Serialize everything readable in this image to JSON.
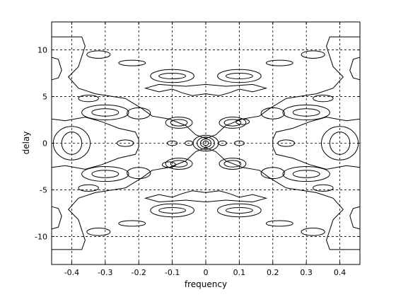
{
  "chart_data": {
    "type": "contour",
    "title": "",
    "xlabel": "frequency",
    "ylabel": "delay",
    "xlim": [
      -0.46,
      0.46
    ],
    "ylim": [
      -13,
      13
    ],
    "xticks": [
      -0.4,
      -0.3,
      -0.2,
      -0.1,
      0,
      0.1,
      0.2,
      0.3,
      0.4
    ],
    "xtick_labels": [
      "-0.4",
      "-0.3",
      "-0.2",
      "-0.1",
      "0",
      "0.1",
      "0.2",
      "0.3",
      "0.4"
    ],
    "yticks": [
      -10,
      -5,
      0,
      5,
      10
    ],
    "ytick_labels": [
      "-10",
      "-5",
      "0",
      "5",
      "10"
    ],
    "grid": true,
    "contours": [
      {
        "cx": 0,
        "cy": 0,
        "rx": 0.008,
        "ry": 0.25
      },
      {
        "cx": 0,
        "cy": 0,
        "rx": 0.016,
        "ry": 0.45
      },
      {
        "cx": 0,
        "cy": 0,
        "rx": 0.026,
        "ry": 0.65
      },
      {
        "cx": 0,
        "cy": 0,
        "rx": 0.038,
        "ry": 0.85
      },
      {
        "cx": -0.08,
        "cy": 2.2,
        "rx": 0.025,
        "ry": 0.35
      },
      {
        "cx": -0.08,
        "cy": 2.2,
        "rx": 0.04,
        "ry": 0.6
      },
      {
        "cx": 0.08,
        "cy": 2.2,
        "rx": 0.025,
        "ry": 0.35
      },
      {
        "cx": 0.08,
        "cy": 2.2,
        "rx": 0.04,
        "ry": 0.6
      },
      {
        "cx": -0.08,
        "cy": -2.2,
        "rx": 0.025,
        "ry": 0.35
      },
      {
        "cx": -0.08,
        "cy": -2.2,
        "rx": 0.04,
        "ry": 0.6
      },
      {
        "cx": 0.08,
        "cy": -2.2,
        "rx": 0.025,
        "ry": 0.35
      },
      {
        "cx": 0.08,
        "cy": -2.2,
        "rx": 0.04,
        "ry": 0.6
      },
      {
        "cx": 0.11,
        "cy": 2.3,
        "rx": 0.02,
        "ry": 0.3
      },
      {
        "cx": -0.11,
        "cy": -2.3,
        "rx": 0.02,
        "ry": 0.3
      },
      {
        "cx": -0.2,
        "cy": 3.2,
        "rx": 0.035,
        "ry": 0.6
      },
      {
        "cx": 0.2,
        "cy": 3.2,
        "rx": 0.035,
        "ry": 0.6
      },
      {
        "cx": -0.2,
        "cy": -3.2,
        "rx": 0.035,
        "ry": 0.6
      },
      {
        "cx": 0.2,
        "cy": -3.2,
        "rx": 0.035,
        "ry": 0.6
      },
      {
        "cx": -0.3,
        "cy": 3.3,
        "rx": 0.04,
        "ry": 0.4
      },
      {
        "cx": -0.3,
        "cy": 3.3,
        "rx": 0.07,
        "ry": 0.8
      },
      {
        "cx": 0.3,
        "cy": 3.3,
        "rx": 0.04,
        "ry": 0.4
      },
      {
        "cx": 0.3,
        "cy": 3.3,
        "rx": 0.07,
        "ry": 0.8
      },
      {
        "cx": -0.3,
        "cy": -3.3,
        "rx": 0.04,
        "ry": 0.4
      },
      {
        "cx": -0.3,
        "cy": -3.3,
        "rx": 0.07,
        "ry": 0.8
      },
      {
        "cx": 0.3,
        "cy": -3.3,
        "rx": 0.04,
        "ry": 0.4
      },
      {
        "cx": 0.3,
        "cy": -3.3,
        "rx": 0.07,
        "ry": 0.8
      },
      {
        "cx": -0.1,
        "cy": 7.2,
        "rx": 0.04,
        "ry": 0.3
      },
      {
        "cx": 0.1,
        "cy": 7.2,
        "rx": 0.04,
        "ry": 0.3
      },
      {
        "cx": -0.1,
        "cy": -7.2,
        "rx": 0.04,
        "ry": 0.3
      },
      {
        "cx": 0.1,
        "cy": -7.2,
        "rx": 0.04,
        "ry": 0.3
      },
      {
        "cx": -0.1,
        "cy": 7.2,
        "rx": 0.065,
        "ry": 0.7
      },
      {
        "cx": 0.1,
        "cy": 7.2,
        "rx": 0.065,
        "ry": 0.7
      },
      {
        "cx": -0.1,
        "cy": -7.2,
        "rx": 0.065,
        "ry": 0.7
      },
      {
        "cx": 0.1,
        "cy": -7.2,
        "rx": 0.065,
        "ry": 0.7
      },
      {
        "cx": -0.35,
        "cy": 4.8,
        "rx": 0.03,
        "ry": 0.35
      },
      {
        "cx": 0.35,
        "cy": 4.8,
        "rx": 0.03,
        "ry": 0.35
      },
      {
        "cx": -0.35,
        "cy": -4.8,
        "rx": 0.03,
        "ry": 0.35
      },
      {
        "cx": 0.35,
        "cy": -4.8,
        "rx": 0.03,
        "ry": 0.35
      },
      {
        "cx": -0.4,
        "cy": 0,
        "rx": 0.03,
        "ry": 1.2
      },
      {
        "cx": -0.4,
        "cy": 0,
        "rx": 0.055,
        "ry": 1.8
      },
      {
        "cx": 0.4,
        "cy": 0,
        "rx": 0.03,
        "ry": 1.2
      },
      {
        "cx": 0.4,
        "cy": 0,
        "rx": 0.055,
        "ry": 1.8
      },
      {
        "cx": -0.24,
        "cy": 0,
        "rx": 0.025,
        "ry": 0.35
      },
      {
        "cx": 0.24,
        "cy": 0,
        "rx": 0.025,
        "ry": 0.35
      },
      {
        "cx": -0.05,
        "cy": 0,
        "rx": 0.012,
        "ry": 0.25
      },
      {
        "cx": 0.05,
        "cy": 0,
        "rx": 0.012,
        "ry": 0.25
      },
      {
        "cx": 0.1,
        "cy": 0,
        "rx": 0.015,
        "ry": 0.25
      },
      {
        "cx": -0.1,
        "cy": 0,
        "rx": 0.015,
        "ry": 0.25
      },
      {
        "cx": -0.22,
        "cy": 8.6,
        "rx": 0.04,
        "ry": 0.3
      },
      {
        "cx": 0.22,
        "cy": 8.6,
        "rx": 0.04,
        "ry": 0.3
      },
      {
        "cx": -0.22,
        "cy": -8.6,
        "rx": 0.04,
        "ry": 0.3
      },
      {
        "cx": 0.22,
        "cy": -8.6,
        "rx": 0.04,
        "ry": 0.3
      },
      {
        "cx": -0.32,
        "cy": 9.5,
        "rx": 0.035,
        "ry": 0.4
      },
      {
        "cx": 0.32,
        "cy": 9.5,
        "rx": 0.035,
        "ry": 0.4
      },
      {
        "cx": -0.32,
        "cy": -9.5,
        "rx": 0.035,
        "ry": 0.4
      },
      {
        "cx": 0.32,
        "cy": -9.5,
        "rx": 0.035,
        "ry": 0.4
      }
    ],
    "outer_contours": [
      [
        [
          -0.46,
          11.4
        ],
        [
          -0.37,
          11.4
        ],
        [
          -0.36,
          10.4
        ],
        [
          -0.38,
          8.2
        ],
        [
          -0.41,
          7.1
        ],
        [
          -0.38,
          5.9
        ],
        [
          -0.33,
          5.3
        ],
        [
          -0.24,
          4.8
        ],
        [
          -0.19,
          3.7
        ],
        [
          -0.16,
          2.9
        ],
        [
          -0.11,
          2.6
        ],
        [
          -0.06,
          1.9
        ],
        [
          -0.03,
          0.9
        ],
        [
          0,
          0.5
        ],
        [
          0.03,
          0.9
        ],
        [
          0.06,
          1.9
        ],
        [
          0.11,
          2.6
        ],
        [
          0.16,
          2.9
        ],
        [
          0.19,
          3.7
        ],
        [
          0.24,
          4.8
        ],
        [
          0.33,
          5.3
        ],
        [
          0.38,
          5.9
        ],
        [
          0.41,
          7.1
        ],
        [
          0.38,
          8.2
        ],
        [
          0.36,
          10.4
        ],
        [
          0.37,
          11.4
        ],
        [
          0.46,
          11.4
        ]
      ],
      [
        [
          -0.46,
          -11.4
        ],
        [
          -0.37,
          -11.4
        ],
        [
          -0.36,
          -10.4
        ],
        [
          -0.38,
          -8.2
        ],
        [
          -0.41,
          -7.1
        ],
        [
          -0.38,
          -5.9
        ],
        [
          -0.33,
          -5.3
        ],
        [
          -0.24,
          -4.8
        ],
        [
          -0.19,
          -3.7
        ],
        [
          -0.16,
          -2.9
        ],
        [
          -0.11,
          -2.6
        ],
        [
          -0.06,
          -1.9
        ],
        [
          -0.03,
          -0.9
        ],
        [
          0,
          -0.5
        ],
        [
          0.03,
          -0.9
        ],
        [
          0.06,
          -1.9
        ],
        [
          0.11,
          -2.6
        ],
        [
          0.16,
          -2.9
        ],
        [
          0.19,
          -3.7
        ],
        [
          0.24,
          -4.8
        ],
        [
          0.33,
          -5.3
        ],
        [
          0.38,
          -5.9
        ],
        [
          0.41,
          -7.1
        ],
        [
          0.38,
          -8.2
        ],
        [
          0.36,
          -10.4
        ],
        [
          0.37,
          -11.4
        ],
        [
          0.46,
          -11.4
        ]
      ],
      [
        [
          -0.46,
          9.2
        ],
        [
          -0.44,
          9.0
        ],
        [
          -0.43,
          7.8
        ],
        [
          -0.44,
          7.0
        ],
        [
          -0.46,
          6.8
        ]
      ],
      [
        [
          0.46,
          9.2
        ],
        [
          0.44,
          9.0
        ],
        [
          0.43,
          7.8
        ],
        [
          0.44,
          7.0
        ],
        [
          0.46,
          6.8
        ]
      ],
      [
        [
          -0.46,
          -9.2
        ],
        [
          -0.44,
          -9.0
        ],
        [
          -0.43,
          -7.8
        ],
        [
          -0.44,
          -7.0
        ],
        [
          -0.46,
          -6.8
        ]
      ],
      [
        [
          0.46,
          -9.2
        ],
        [
          0.44,
          -9.0
        ],
        [
          0.43,
          -7.8
        ],
        [
          0.44,
          -7.0
        ],
        [
          0.46,
          -6.8
        ]
      ],
      [
        [
          -0.46,
          2.6
        ],
        [
          -0.42,
          2.4
        ],
        [
          -0.36,
          2.8
        ],
        [
          -0.31,
          2.3
        ],
        [
          -0.26,
          1.6
        ],
        [
          -0.21,
          1.2
        ],
        [
          -0.2,
          0.4
        ],
        [
          -0.2,
          -0.4
        ],
        [
          -0.21,
          -1.2
        ],
        [
          -0.26,
          -1.6
        ],
        [
          -0.31,
          -2.3
        ],
        [
          -0.36,
          -2.8
        ],
        [
          -0.42,
          -2.4
        ],
        [
          -0.46,
          -2.6
        ]
      ],
      [
        [
          0.46,
          2.6
        ],
        [
          0.42,
          2.4
        ],
        [
          0.36,
          2.8
        ],
        [
          0.31,
          2.3
        ],
        [
          0.26,
          1.6
        ],
        [
          0.21,
          1.2
        ],
        [
          0.2,
          0.4
        ],
        [
          0.2,
          -0.4
        ],
        [
          0.21,
          -1.2
        ],
        [
          0.26,
          -1.6
        ],
        [
          0.31,
          -2.3
        ],
        [
          0.36,
          -2.8
        ],
        [
          0.42,
          -2.4
        ],
        [
          0.46,
          -2.6
        ]
      ],
      [
        [
          -0.07,
          5.4
        ],
        [
          -0.04,
          5.1
        ],
        [
          0,
          5.3
        ],
        [
          0.04,
          5.1
        ],
        [
          0.07,
          5.4
        ],
        [
          0.1,
          5.8
        ],
        [
          0.14,
          5.5
        ],
        [
          0.18,
          5.9
        ],
        [
          0.14,
          6.3
        ],
        [
          0.06,
          6.1
        ],
        [
          0,
          6.3
        ],
        [
          -0.06,
          6.1
        ],
        [
          -0.14,
          6.3
        ],
        [
          -0.18,
          5.9
        ],
        [
          -0.14,
          5.5
        ],
        [
          -0.1,
          5.8
        ],
        [
          -0.07,
          5.4
        ]
      ],
      [
        [
          -0.07,
          -5.4
        ],
        [
          -0.04,
          -5.1
        ],
        [
          0,
          -5.3
        ],
        [
          0.04,
          -5.1
        ],
        [
          0.07,
          -5.4
        ],
        [
          0.1,
          -5.8
        ],
        [
          0.14,
          -5.5
        ],
        [
          0.18,
          -5.9
        ],
        [
          0.14,
          -6.3
        ],
        [
          0.06,
          -6.1
        ],
        [
          0,
          -6.3
        ],
        [
          -0.06,
          -6.1
        ],
        [
          -0.14,
          -6.3
        ],
        [
          -0.18,
          -5.9
        ],
        [
          -0.14,
          -5.5
        ],
        [
          -0.1,
          -5.8
        ],
        [
          -0.07,
          -5.4
        ]
      ]
    ]
  }
}
